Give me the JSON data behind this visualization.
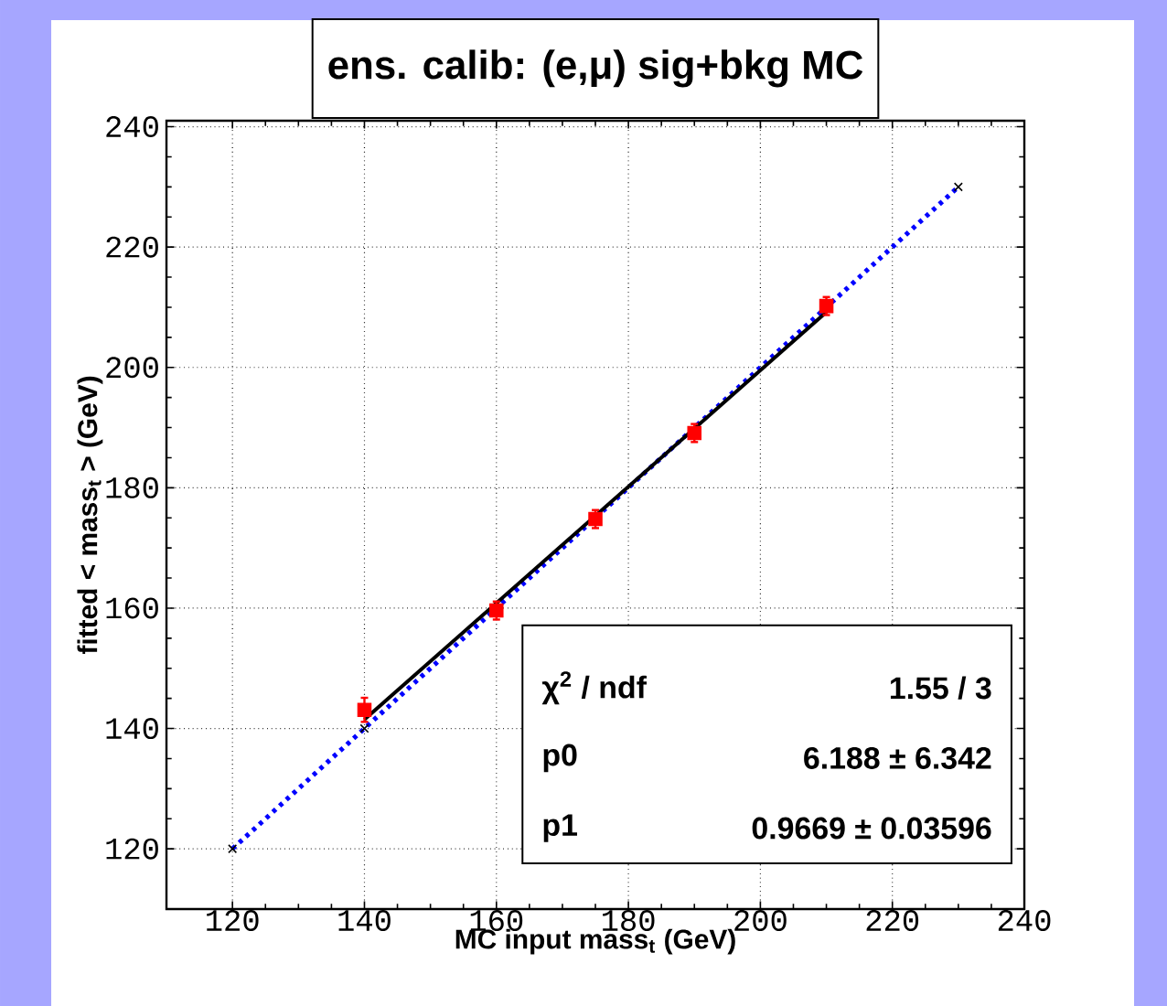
{
  "chart_data": {
    "type": "scatter",
    "title": "ens. calib: (e,μ) sig+bkg MC",
    "xlabel": "MC input mass$_{t}$ (GeV)",
    "ylabel": "fitted < mass$_{t}$ > (GeV)",
    "xlim": [
      110,
      240
    ],
    "ylim": [
      110,
      241
    ],
    "xticks": [
      120,
      140,
      160,
      180,
      200,
      220,
      240
    ],
    "yticks": [
      120,
      140,
      160,
      180,
      200,
      220,
      240
    ],
    "grid": true,
    "series": [
      {
        "type": "line",
        "color": "#0000ff",
        "line_style": "dotted",
        "marker": "none",
        "x": [
          120,
          230
        ],
        "values": [
          120,
          230
        ]
      },
      {
        "color": "#000000",
        "marker": "cross",
        "x": [
          120,
          140,
          230
        ],
        "values": [
          120,
          140,
          230
        ]
      },
      {
        "type": "line",
        "color": "#000000",
        "line_style": "solid",
        "marker": "none",
        "x": [
          140,
          210
        ],
        "values": [
          141.5,
          209.2
        ]
      },
      {
        "color": "#ff0000",
        "marker": "square",
        "x": [
          140,
          160,
          175,
          190,
          210
        ],
        "values": [
          143.1,
          159.6,
          174.8,
          189.1,
          210.2
        ],
        "errors": [
          2,
          1.5,
          1.5,
          1.5,
          1.5
        ]
      }
    ],
    "annotations": [
      "χ$^{2}$ / ndf",
      "1.55 / 3",
      "p0",
      "6.188 ± 6.342",
      "p1",
      "0.9669 ± 0.03596"
    ]
  }
}
